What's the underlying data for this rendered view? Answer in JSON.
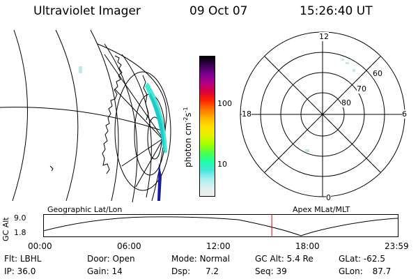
{
  "header": {
    "instrument": "Ultraviolet Imager",
    "date": "09 Oct 07",
    "time": "15:26:40 UT"
  },
  "colorbar": {
    "unit_prefix": "photon cm",
    "sup1": "-2",
    "s_letter": "s",
    "sup2": "-1",
    "ticks": [
      "100",
      "10"
    ],
    "colors": [
      "#000000",
      "#3a0050",
      "#7a0090",
      "#b0008a",
      "#d80040",
      "#ff2000",
      "#ff7000",
      "#ffb000",
      "#ffe000",
      "#e8f000",
      "#a8ff00",
      "#50ff40",
      "#20ffa0",
      "#40e8d8",
      "#a0f0f0",
      "#dcf0f0",
      "#f0f0f0"
    ]
  },
  "left_map": {
    "label": "Geographic Lat/Lon"
  },
  "polar": {
    "label": "Apex MLat/MLT",
    "hours": [
      "12",
      "18",
      "6",
      "0"
    ],
    "lats": [
      "60",
      "70",
      "80"
    ]
  },
  "timeline": {
    "ylabel": "GC Alt",
    "ymax": "9.0",
    "ymin": "1.8",
    "x_ticks": [
      "00:00",
      "06:00",
      "12:00",
      "18:00",
      "23:59"
    ],
    "marker_time_fraction": 0.644,
    "marker_color": "#dd0000"
  },
  "info": {
    "filter": {
      "label": "Flt:",
      "value": "LBHL"
    },
    "door": {
      "label": "Door:",
      "value": "Open"
    },
    "mode": {
      "label": "Mode:",
      "value": "Normal"
    },
    "gc_alt": {
      "label": "GC Alt:",
      "value": "5.4 Re"
    },
    "glat": {
      "label": "GLat:",
      "value": "-62.5"
    },
    "ip": {
      "label": "IP:",
      "value": "36.0"
    },
    "gain": {
      "label": "Gain:",
      "value": "14"
    },
    "dsp": {
      "label": "Dsp:",
      "value": "7.2"
    },
    "seq": {
      "label": "Seq:",
      "value": "39"
    },
    "glon": {
      "label": "GLon:",
      "value": "87.7"
    }
  }
}
